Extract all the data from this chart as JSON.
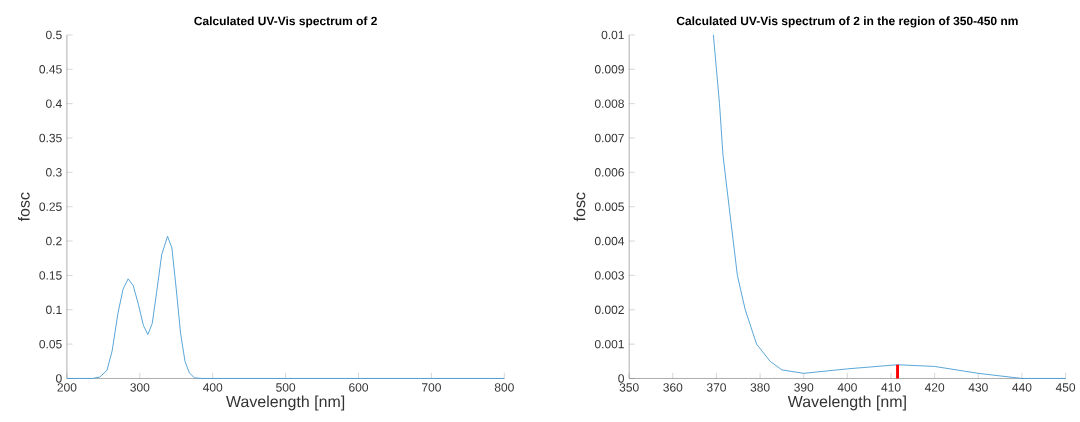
{
  "chart_data": [
    {
      "type": "line",
      "title": "Calculated UV-Vis spectrum of 2",
      "xlabel": "Wavelength [nm]",
      "ylabel": "fosc",
      "xlim": [
        200,
        800
      ],
      "ylim": [
        0,
        0.5
      ],
      "xticks": [
        200,
        300,
        400,
        500,
        600,
        700,
        800
      ],
      "yticks": [
        0,
        0.05,
        0.1,
        0.15,
        0.2,
        0.25,
        0.3,
        0.35,
        0.4,
        0.45,
        0.5
      ],
      "series": [
        {
          "color": "#4d9fd6",
          "x": [
            200,
            235,
            245,
            255,
            262,
            270,
            277,
            284,
            291,
            298,
            305,
            311,
            317,
            323,
            330,
            338,
            344,
            350,
            356,
            362,
            368,
            375,
            385,
            800
          ],
          "values": [
            0,
            0,
            0.002,
            0.012,
            0.04,
            0.095,
            0.13,
            0.145,
            0.135,
            0.108,
            0.077,
            0.064,
            0.08,
            0.125,
            0.18,
            0.207,
            0.19,
            0.13,
            0.065,
            0.025,
            0.008,
            0.001,
            0,
            0
          ]
        }
      ]
    },
    {
      "type": "line",
      "title": "Calculated UV-Vis spectrum of 2 in the region of 350-450 nm",
      "xlabel": "Wavelength [nm]",
      "ylabel": "fosc",
      "xlim": [
        350,
        450
      ],
      "ylim": [
        0,
        0.01
      ],
      "xticks": [
        350,
        360,
        370,
        380,
        390,
        400,
        410,
        420,
        430,
        440,
        450
      ],
      "yticks": [
        0,
        0.001,
        0.002,
        0.003,
        0.004,
        0.005,
        0.006,
        0.007,
        0.008,
        0.009,
        0.01
      ],
      "series": [
        {
          "color": "#4d9fd6",
          "x": [
            369.3,
            370.7,
            371.5,
            372.9,
            374.8,
            376.6,
            379.2,
            382.3,
            385,
            390,
            400,
            411.5,
            420,
            430,
            440,
            450
          ],
          "values": [
            0.01,
            0.008,
            0.0065,
            0.005,
            0.003,
            0.002,
            0.001,
            0.0005,
            0.00025,
            0.00015,
            0.00028,
            0.0004,
            0.00035,
            0.00015,
            0,
            0
          ]
        },
        {
          "type": "bar",
          "color": "#ff0000",
          "x": [
            411.5
          ],
          "values": [
            0.0004
          ]
        }
      ]
    }
  ]
}
